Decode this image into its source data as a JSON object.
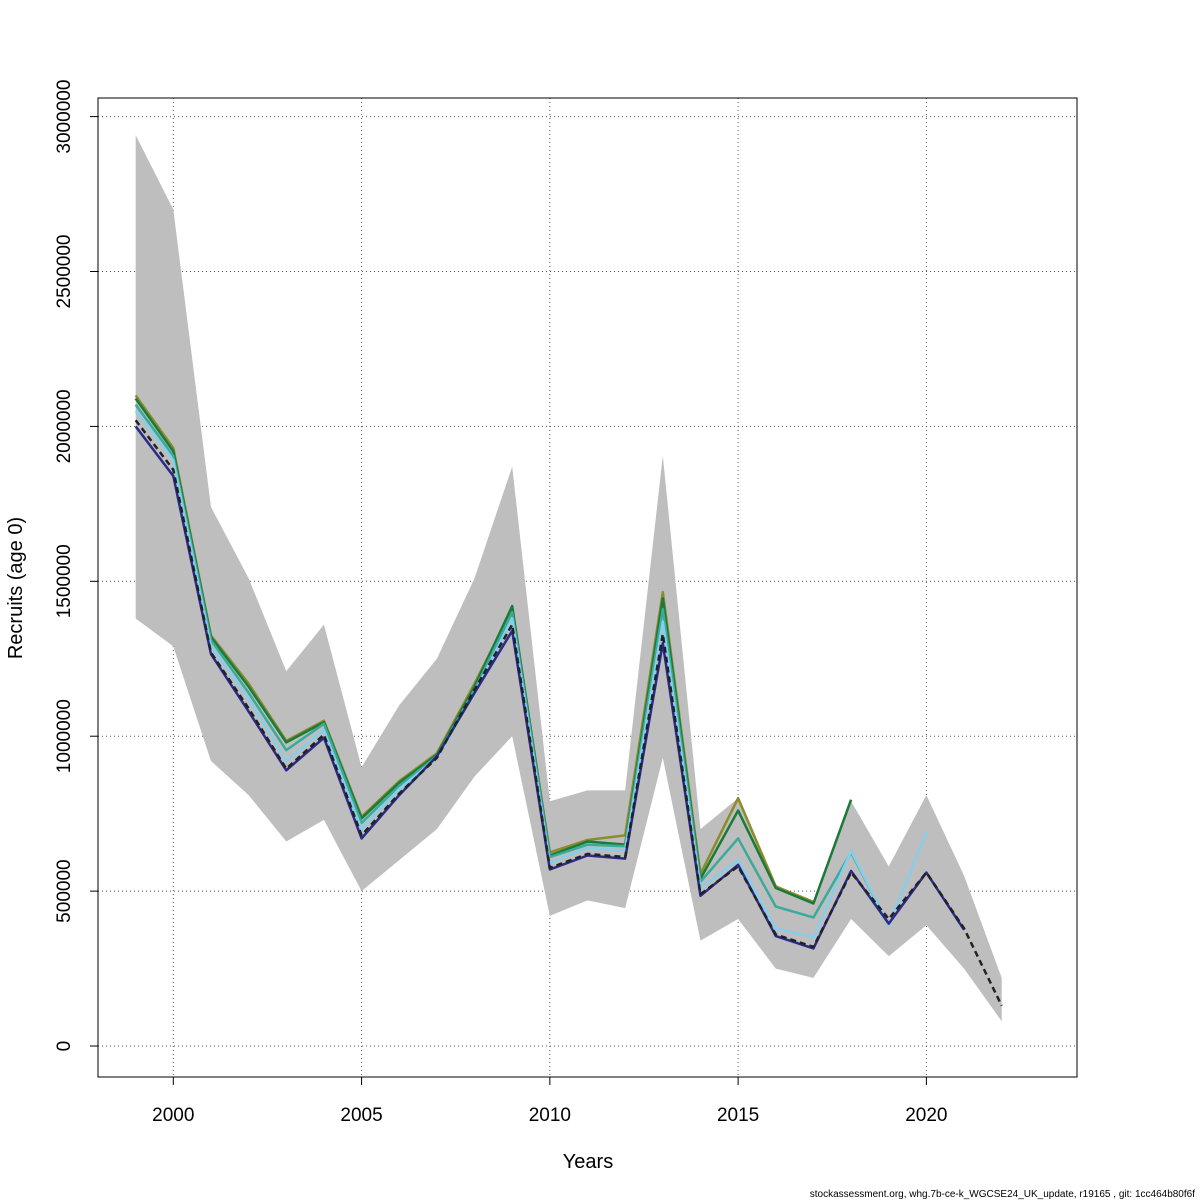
{
  "chart_data": {
    "type": "line",
    "title": "",
    "xlabel": "Years",
    "ylabel": "Recruits (age 0)",
    "xlim": [
      1998,
      2024
    ],
    "ylim": [
      -100000,
      3060000
    ],
    "x_ticks": [
      2000,
      2005,
      2010,
      2015,
      2020
    ],
    "y_ticks": [
      0,
      500000,
      1000000,
      1500000,
      2000000,
      2500000,
      3000000
    ],
    "grid": true,
    "legend": "none",
    "confidence_band": {
      "color": "#bebebe",
      "years": [
        1999,
        2000,
        2001,
        2002,
        2003,
        2004,
        2005,
        2006,
        2007,
        2008,
        2009,
        2010,
        2011,
        2012,
        2013,
        2014,
        2015,
        2016,
        2017,
        2018,
        2019,
        2020,
        2021,
        2022
      ],
      "lower": [
        1380000,
        1290000,
        920000,
        810000,
        660000,
        730000,
        500000,
        600000,
        700000,
        870000,
        1000000,
        420000,
        470000,
        445000,
        930000,
        340000,
        410000,
        250000,
        220000,
        410000,
        290000,
        390000,
        250000,
        80000
      ],
      "upper": [
        2940000,
        2700000,
        1740000,
        1510000,
        1210000,
        1360000,
        900000,
        1100000,
        1250000,
        1510000,
        1870000,
        790000,
        825000,
        825000,
        1905000,
        700000,
        800000,
        520000,
        460000,
        790000,
        580000,
        810000,
        550000,
        220000
      ]
    },
    "series": [
      {
        "color": "#8c8c2a",
        "dash": "",
        "years": [
          1999,
          2000,
          2001,
          2002,
          2003,
          2004,
          2005,
          2006,
          2007,
          2008,
          2009,
          2010,
          2011,
          2012,
          2013,
          2014,
          2015,
          2016,
          2017
        ],
        "values": [
          2100000,
          1930000,
          1325000,
          1170000,
          985000,
          1050000,
          740000,
          855000,
          945000,
          1170000,
          1410000,
          625000,
          665000,
          680000,
          1465000,
          555000,
          800000,
          515000,
          465000
        ]
      },
      {
        "color": "#1a7a3a",
        "dash": "",
        "years": [
          1999,
          2000,
          2001,
          2002,
          2003,
          2004,
          2005,
          2006,
          2007,
          2008,
          2009,
          2010,
          2011,
          2012,
          2013,
          2014,
          2015,
          2016,
          2017,
          2018
        ],
        "values": [
          2090000,
          1920000,
          1320000,
          1160000,
          980000,
          1045000,
          735000,
          850000,
          940000,
          1160000,
          1420000,
          615000,
          660000,
          650000,
          1445000,
          540000,
          760000,
          510000,
          460000,
          795000
        ]
      },
      {
        "color": "#3aaa9a",
        "dash": "",
        "years": [
          1999,
          2000,
          2001,
          2002,
          2003,
          2004,
          2005,
          2006,
          2007,
          2008,
          2009,
          2010,
          2011,
          2012,
          2013,
          2014,
          2015,
          2016,
          2017,
          2018,
          2019
        ],
        "values": [
          2070000,
          1905000,
          1310000,
          1140000,
          955000,
          1040000,
          720000,
          840000,
          935000,
          1150000,
          1400000,
          610000,
          650000,
          645000,
          1410000,
          530000,
          670000,
          450000,
          415000,
          625000,
          390000
        ]
      },
      {
        "color": "#87ceeb",
        "dash": "",
        "years": [
          1999,
          2000,
          2001,
          2002,
          2003,
          2004,
          2005,
          2006,
          2007,
          2008,
          2009,
          2010,
          2011,
          2012,
          2013,
          2014,
          2015,
          2016,
          2017,
          2018,
          2019,
          2020
        ],
        "values": [
          2050000,
          1890000,
          1290000,
          1120000,
          920000,
          1020000,
          700000,
          830000,
          930000,
          1140000,
          1380000,
          590000,
          640000,
          630000,
          1370000,
          510000,
          600000,
          380000,
          350000,
          630000,
          390000,
          690000
        ]
      },
      {
        "color": "#2a2a8a",
        "dash": "",
        "years": [
          1999,
          2000,
          2001,
          2002,
          2003,
          2004,
          2005,
          2006,
          2007,
          2008,
          2009,
          2010,
          2011,
          2012,
          2013,
          2014,
          2015,
          2016,
          2017,
          2018,
          2019,
          2020,
          2021
        ],
        "values": [
          2000000,
          1840000,
          1265000,
          1080000,
          890000,
          995000,
          670000,
          810000,
          935000,
          1140000,
          1340000,
          570000,
          615000,
          605000,
          1300000,
          485000,
          585000,
          355000,
          315000,
          565000,
          395000,
          560000,
          375000
        ]
      },
      {
        "color": "#222222",
        "dash": "6,4",
        "years": [
          1999,
          2000,
          2001,
          2002,
          2003,
          2004,
          2005,
          2006,
          2007,
          2008,
          2009,
          2010,
          2011,
          2012,
          2013,
          2014,
          2015,
          2016,
          2017,
          2018,
          2019,
          2020,
          2021,
          2022
        ],
        "values": [
          2020000,
          1860000,
          1270000,
          1090000,
          895000,
          1005000,
          680000,
          815000,
          930000,
          1150000,
          1360000,
          575000,
          620000,
          610000,
          1330000,
          490000,
          580000,
          360000,
          320000,
          560000,
          410000,
          560000,
          380000,
          130000
        ]
      }
    ]
  },
  "footer": {
    "text": "stockassessment.org, whg.7b-ce-k_WGCSE24_UK_update, r19165 , git: 1cc464b80f6f"
  }
}
